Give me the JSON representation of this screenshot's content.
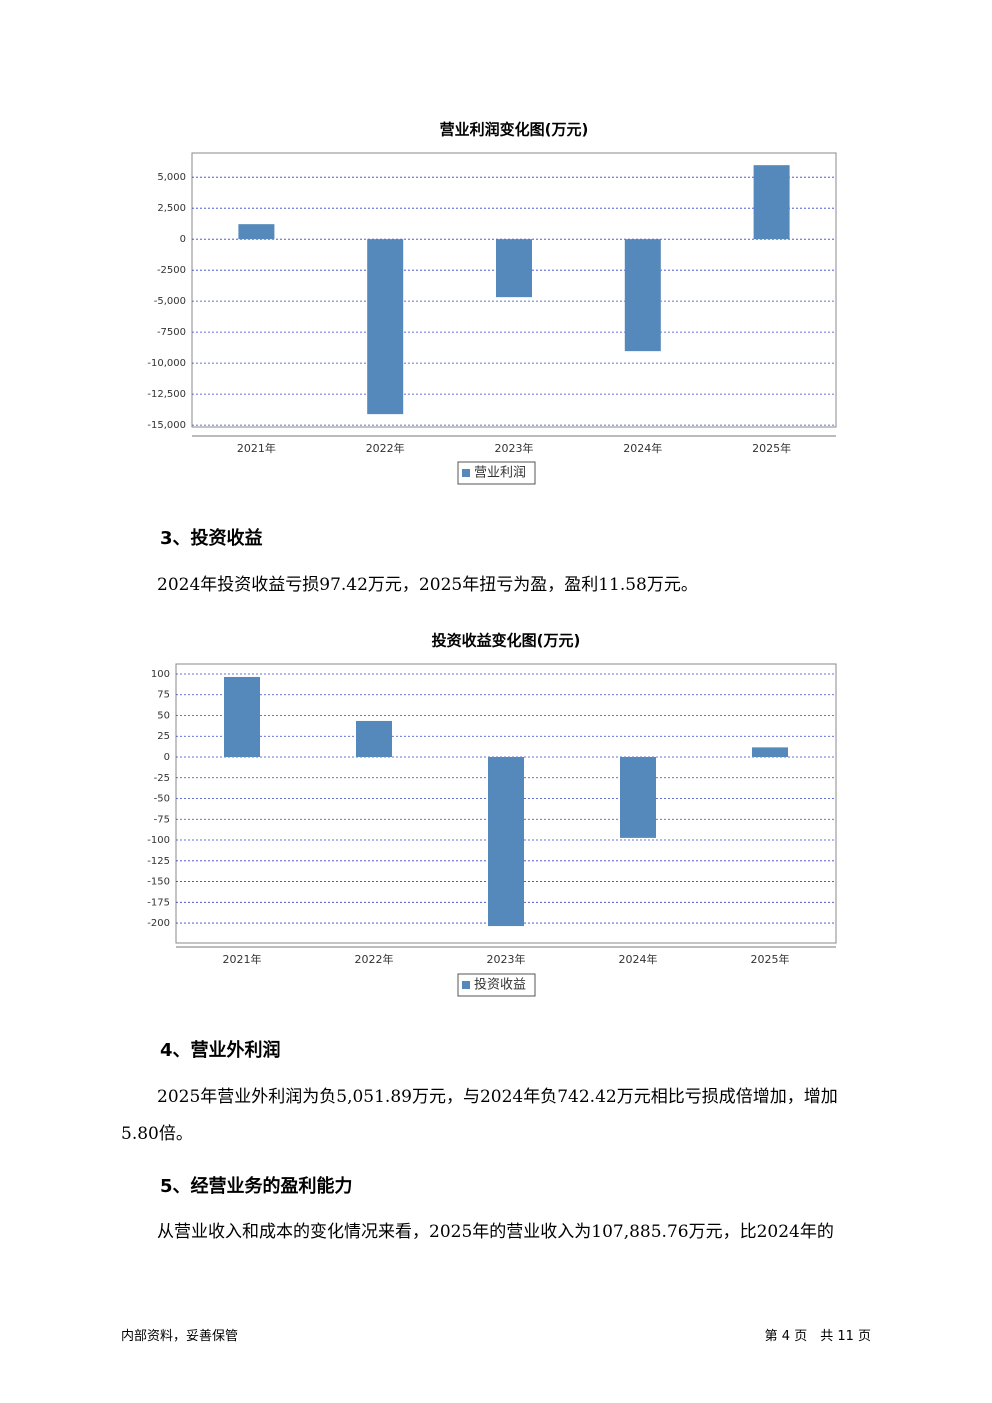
{
  "chart_data": [
    {
      "type": "bar",
      "title": "营业利润变化图(万元)",
      "categories": [
        "2021年",
        "2022年",
        "2023年",
        "2024年",
        "2025年"
      ],
      "series": [
        {
          "name": "营业利润",
          "color": "#5588bb",
          "values": [
            1210,
            -14113,
            -4677,
            -9032,
            5968
          ]
        }
      ],
      "ylim": [
        -15150,
        6950
      ],
      "yticks": [
        {
          "value": 5000,
          "label": "5,000"
        },
        {
          "value": 2500,
          "label": "2,500"
        },
        0,
        -2500,
        {
          "value": -5000,
          "label": "-5,000"
        },
        -7500,
        {
          "value": -10000,
          "label": "-10,000"
        },
        {
          "value": -12500,
          "label": "-12,500"
        },
        {
          "value": -15000,
          "label": "-15,000"
        }
      ],
      "grid": true
    },
    {
      "type": "bar",
      "title": "投资收益变化图(万元)",
      "categories": [
        "2021年",
        "2022年",
        "2023年",
        "2024年",
        "2025年"
      ],
      "series": [
        {
          "name": "投资收益",
          "color": "#5588bb",
          "values": [
            96.4,
            43.4,
            -203.6,
            -97.42,
            11.58
          ]
        }
      ],
      "ylim": [
        -224,
        112
      ],
      "yticks": [
        100,
        75,
        50,
        25,
        0,
        -25,
        -50,
        -75,
        -100,
        -125,
        -150,
        -175,
        -200
      ],
      "grid": true
    }
  ],
  "document": {
    "sections": [
      {
        "heading": "3、投资收益",
        "paragraph": "2024年投资收益亏损97.42万元，2025年扭亏为盈，盈利11.58万元。"
      },
      {
        "heading": "4、营业外利润",
        "paragraph": "2025年营业外利润为负5,051.89万元，与2024年负742.42万元相比亏损成倍增加，增加5.80倍。"
      },
      {
        "heading": "5、经营业务的盈利能力",
        "paragraph": "从营业收入和成本的变化情况来看，2025年的营业收入为107,885.76万元，比2024年的"
      }
    ],
    "footer": {
      "left": "内部资料，妥善保管",
      "right": "第 4 页　共 11 页"
    }
  }
}
